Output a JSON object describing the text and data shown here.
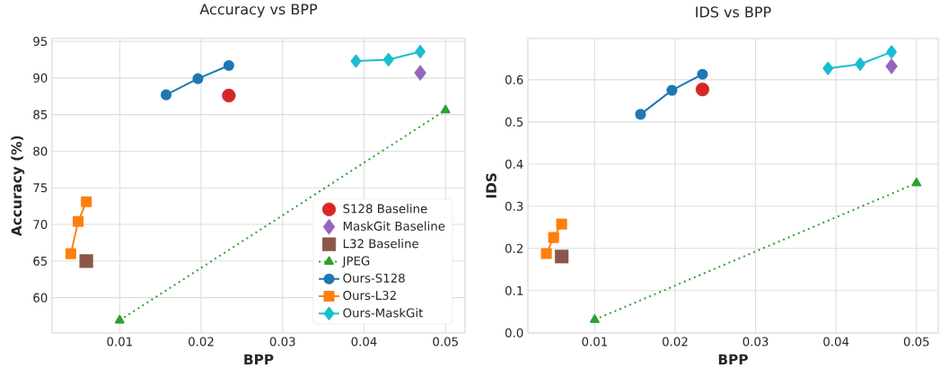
{
  "chart_data": [
    {
      "type": "line",
      "title": "Accuracy vs BPP",
      "xlabel": "BPP",
      "ylabel": "Accuracy (%)",
      "xlim": [
        0.0017,
        0.0524
      ],
      "ylim": [
        55.2,
        95.4
      ],
      "xticks": [
        0.01,
        0.02,
        0.03,
        0.04,
        0.05
      ],
      "yticks": [
        60,
        65,
        70,
        75,
        80,
        85,
        90,
        95
      ],
      "grid": true,
      "legend": "bottom right",
      "series": [
        {
          "name": "S128 Baseline",
          "type": "scatter",
          "marker": "circle",
          "color": "#d62728",
          "x": [
            0.0234
          ],
          "values": [
            87.6
          ]
        },
        {
          "name": "MaskGit Baseline",
          "type": "scatter",
          "marker": "diamond",
          "color": "#9467bd",
          "x": [
            0.0469
          ],
          "values": [
            90.7
          ]
        },
        {
          "name": "L32 Baseline",
          "type": "scatter",
          "marker": "square",
          "color": "#8c564b",
          "x": [
            0.0059
          ],
          "values": [
            65.0
          ]
        },
        {
          "name": "JPEG",
          "marker": "triangle",
          "line_style": "dotted",
          "color": "#2ca02c",
          "x": [
            0.01,
            0.05
          ],
          "values": [
            56.9,
            85.6
          ]
        },
        {
          "name": "Ours-S128",
          "marker": "circle",
          "line_style": "solid",
          "color": "#1f77b4",
          "x": [
            0.0157,
            0.0196,
            0.0234
          ],
          "values": [
            87.7,
            89.9,
            91.7
          ]
        },
        {
          "name": "Ours-L32",
          "marker": "square",
          "line_style": "solid",
          "color": "#ff7f0e",
          "x": [
            0.004,
            0.0049,
            0.0059
          ],
          "values": [
            66.0,
            70.4,
            73.1
          ]
        },
        {
          "name": "Ours-MaskGit",
          "marker": "diamond",
          "line_style": "solid",
          "color": "#17becf",
          "x": [
            0.039,
            0.043,
            0.0469
          ],
          "values": [
            92.3,
            92.5,
            93.6
          ]
        }
      ]
    },
    {
      "type": "line",
      "title": "IDS vs BPP",
      "xlabel": "BPP",
      "ylabel": "IDS",
      "xlim": [
        0.0017,
        0.0527
      ],
      "ylim": [
        0.0,
        0.698
      ],
      "xticks": [
        0.01,
        0.02,
        0.03,
        0.04,
        0.05
      ],
      "yticks": [
        {
          "value": 0,
          "label": "0.0"
        },
        0.1,
        0.2,
        0.3,
        0.4,
        0.5,
        0.6
      ],
      "grid": true,
      "series": [
        {
          "type": "scatter",
          "marker": "circle",
          "color": "#d62728",
          "x": [
            0.0234
          ],
          "values": [
            0.577
          ]
        },
        {
          "type": "scatter",
          "marker": "diamond",
          "color": "#9467bd",
          "x": [
            0.0469
          ],
          "values": [
            0.632
          ]
        },
        {
          "type": "scatter",
          "marker": "square",
          "color": "#8c564b",
          "x": [
            0.0059
          ],
          "values": [
            0.181
          ]
        },
        {
          "marker": "triangle",
          "line_style": "dotted",
          "color": "#2ca02c",
          "x": [
            0.01,
            0.05
          ],
          "values": [
            0.031,
            0.355
          ]
        },
        {
          "marker": "circle",
          "line_style": "solid",
          "color": "#1f77b4",
          "x": [
            0.0157,
            0.0196,
            0.0234
          ],
          "values": [
            0.518,
            0.575,
            0.613
          ]
        },
        {
          "marker": "square",
          "line_style": "solid",
          "color": "#ff7f0e",
          "x": [
            0.004,
            0.0049,
            0.0059
          ],
          "values": [
            0.188,
            0.226,
            0.258
          ]
        },
        {
          "marker": "diamond",
          "line_style": "solid",
          "color": "#17becf",
          "x": [
            0.039,
            0.043,
            0.0469
          ],
          "values": [
            0.627,
            0.637,
            0.666
          ]
        }
      ]
    }
  ]
}
